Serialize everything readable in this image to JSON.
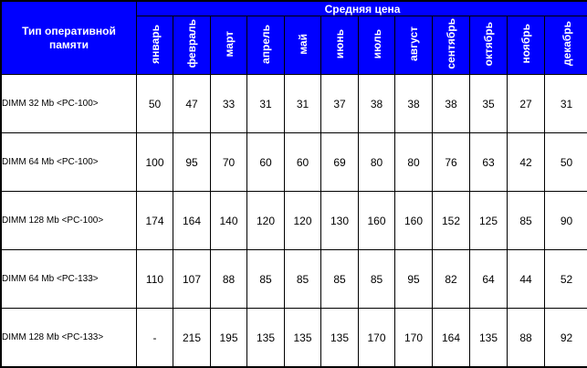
{
  "table": {
    "type_header": "Тип оперативной памяти",
    "group_header": "Средняя цена",
    "months": [
      "январь",
      "февраль",
      "март",
      "апрель",
      "май",
      "июнь",
      "июль",
      "август",
      "сентябрь",
      "октябрь",
      "ноябрь",
      "декабрь"
    ],
    "rows": [
      {
        "type": "DIMM 32 Mb <PC-100>",
        "values": [
          "50",
          "47",
          "33",
          "31",
          "31",
          "37",
          "38",
          "38",
          "38",
          "35",
          "27",
          "31"
        ]
      },
      {
        "type": "DIMM 64 Mb <PC-100>",
        "values": [
          "100",
          "95",
          "70",
          "60",
          "60",
          "69",
          "80",
          "80",
          "76",
          "63",
          "42",
          "50"
        ]
      },
      {
        "type": "DIMM 128 Mb <PC-100>",
        "values": [
          "174",
          "164",
          "140",
          "120",
          "120",
          "130",
          "160",
          "160",
          "152",
          "125",
          "85",
          "90"
        ]
      },
      {
        "type": "DIMM 64 Mb <PC-133>",
        "values": [
          "110",
          "107",
          "88",
          "85",
          "85",
          "85",
          "85",
          "95",
          "82",
          "64",
          "44",
          "52"
        ]
      },
      {
        "type": "DIMM 128 Mb <PC-133>",
        "values": [
          "-",
          "215",
          "195",
          "135",
          "135",
          "135",
          "170",
          "170",
          "164",
          "135",
          "88",
          "92"
        ]
      }
    ]
  }
}
